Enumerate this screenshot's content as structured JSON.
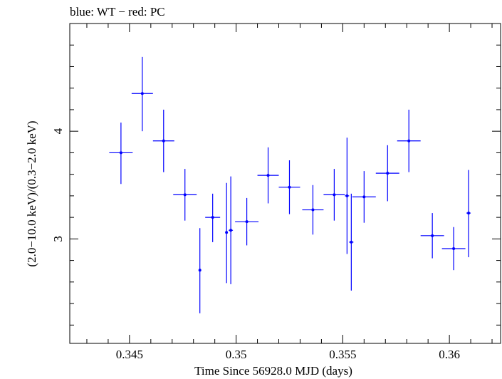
{
  "chart_data": {
    "type": "scatter",
    "title": "blue: WT − red: PC",
    "xlabel": "Time Since 56928.0 MJD (days)",
    "ylabel": "(2.0−10.0 keV)/(0.3−2.0 keV)",
    "xlim": [
      0.3422,
      0.3624
    ],
    "ylim": [
      2.03,
      5.0
    ],
    "x_major_ticks": [
      0.345,
      0.35,
      0.355,
      0.36
    ],
    "x_tick_labels": [
      "0.345",
      "0.35",
      "0.355",
      "0.36"
    ],
    "y_major_ticks": [
      3,
      4
    ],
    "y_tick_labels": [
      "3",
      "4"
    ],
    "grid": false,
    "colors": {
      "WT": "#0000ff",
      "PC": "#ff0000",
      "frame": "#000000"
    },
    "series": [
      {
        "name": "WT",
        "color": "#0000ff",
        "points": [
          {
            "x": 0.3446,
            "xerr": 0.00055,
            "y": 3.8,
            "yerr_lo": 0.29,
            "yerr_hi": 0.28
          },
          {
            "x": 0.3456,
            "xerr": 0.0005,
            "y": 4.35,
            "yerr_lo": 0.35,
            "yerr_hi": 0.34
          },
          {
            "x": 0.3466,
            "xerr": 0.0005,
            "y": 3.91,
            "yerr_lo": 0.29,
            "yerr_hi": 0.29
          },
          {
            "x": 0.3476,
            "xerr": 0.00055,
            "y": 3.41,
            "yerr_lo": 0.24,
            "yerr_hi": 0.24
          },
          {
            "x": 0.3483,
            "xerr": 5e-05,
            "y": 2.71,
            "yerr_lo": 0.4,
            "yerr_hi": 0.39
          },
          {
            "x": 0.3489,
            "xerr": 0.00035,
            "y": 3.2,
            "yerr_lo": 0.23,
            "yerr_hi": 0.22
          },
          {
            "x": 0.34955,
            "xerr": 5e-05,
            "y": 3.06,
            "yerr_lo": 0.47,
            "yerr_hi": 0.46
          },
          {
            "x": 0.34975,
            "xerr": 0.0001,
            "y": 3.08,
            "yerr_lo": 0.5,
            "yerr_hi": 0.5
          },
          {
            "x": 0.3505,
            "xerr": 0.00055,
            "y": 3.16,
            "yerr_lo": 0.22,
            "yerr_hi": 0.22
          },
          {
            "x": 0.3515,
            "xerr": 0.0005,
            "y": 3.59,
            "yerr_lo": 0.26,
            "yerr_hi": 0.26
          },
          {
            "x": 0.3525,
            "xerr": 0.0005,
            "y": 3.48,
            "yerr_lo": 0.25,
            "yerr_hi": 0.25
          },
          {
            "x": 0.3536,
            "xerr": 0.0005,
            "y": 3.27,
            "yerr_lo": 0.23,
            "yerr_hi": 0.23
          },
          {
            "x": 0.3546,
            "xerr": 0.0005,
            "y": 3.41,
            "yerr_lo": 0.24,
            "yerr_hi": 0.24
          },
          {
            "x": 0.3552,
            "xerr": 0.0001,
            "y": 3.4,
            "yerr_lo": 0.54,
            "yerr_hi": 0.54
          },
          {
            "x": 0.3554,
            "xerr": 0.0001,
            "y": 2.97,
            "yerr_lo": 0.45,
            "yerr_hi": 0.45
          },
          {
            "x": 0.356,
            "xerr": 0.00055,
            "y": 3.39,
            "yerr_lo": 0.24,
            "yerr_hi": 0.24
          },
          {
            "x": 0.3571,
            "xerr": 0.00055,
            "y": 3.61,
            "yerr_lo": 0.26,
            "yerr_hi": 0.26
          },
          {
            "x": 0.3581,
            "xerr": 0.00055,
            "y": 3.91,
            "yerr_lo": 0.29,
            "yerr_hi": 0.29
          },
          {
            "x": 0.3592,
            "xerr": 0.00055,
            "y": 3.03,
            "yerr_lo": 0.21,
            "yerr_hi": 0.21
          },
          {
            "x": 0.3602,
            "xerr": 0.00055,
            "y": 2.91,
            "yerr_lo": 0.2,
            "yerr_hi": 0.2
          },
          {
            "x": 0.3609,
            "xerr": 0.0001,
            "y": 3.24,
            "yerr_lo": 0.41,
            "yerr_hi": 0.4
          }
        ]
      }
    ]
  }
}
